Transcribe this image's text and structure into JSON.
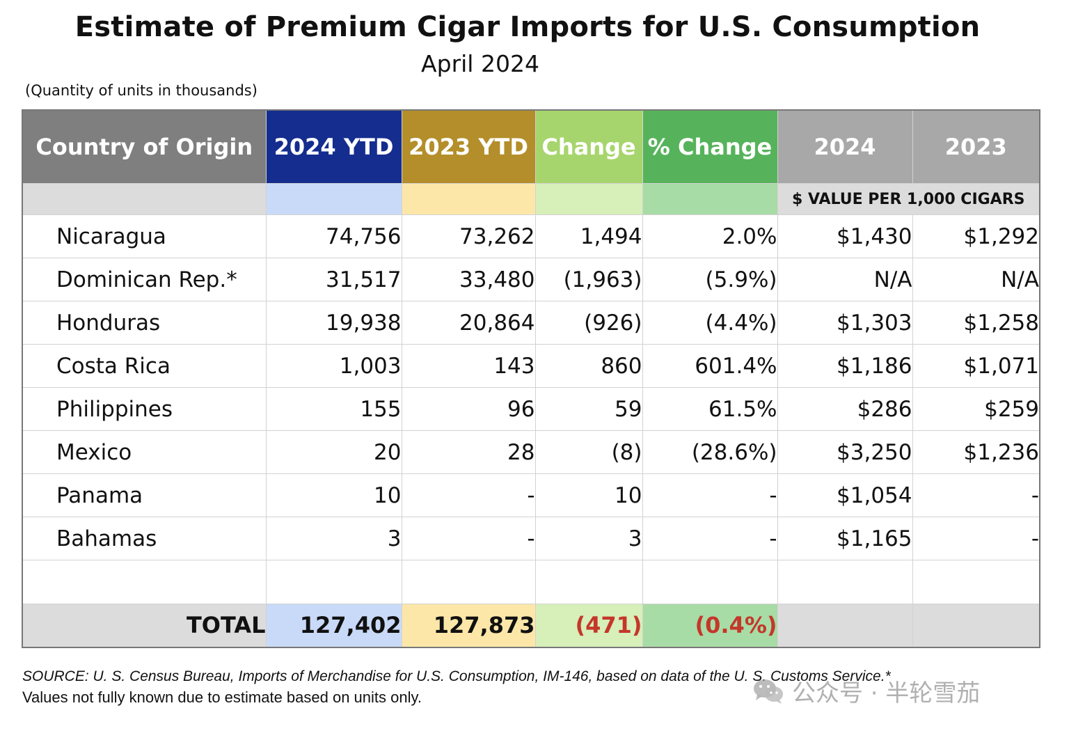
{
  "title": "Estimate of Premium Cigar Imports for U.S. Consumption",
  "subtitle": "April 2024",
  "units_note": "(Quantity of units in thousands)",
  "table": {
    "headers": {
      "country": "Country of Origin",
      "ytd_2024": "2024 YTD",
      "ytd_2023": "2023 YTD",
      "change": "Change",
      "pct_change": "% Change",
      "val_2024": "2024",
      "val_2023": "2023"
    },
    "value_subheader": "$ VALUE PER 1,000 CIGARS",
    "rows": [
      {
        "country": "Nicaragua",
        "ytd_2024": "74,756",
        "ytd_2023": "73,262",
        "change": "1,494",
        "pct_change": "2.0%",
        "val_2024": "$1,430",
        "val_2023": "$1,292"
      },
      {
        "country": "Dominican Rep.*",
        "ytd_2024": "31,517",
        "ytd_2023": "33,480",
        "change": "(1,963)",
        "pct_change": "(5.9%)",
        "val_2024": "N/A",
        "val_2023": "N/A"
      },
      {
        "country": "Honduras",
        "ytd_2024": "19,938",
        "ytd_2023": "20,864",
        "change": "(926)",
        "pct_change": "(4.4%)",
        "val_2024": "$1,303",
        "val_2023": "$1,258"
      },
      {
        "country": "Costa Rica",
        "ytd_2024": "1,003",
        "ytd_2023": "143",
        "change": "860",
        "pct_change": "601.4%",
        "val_2024": "$1,186",
        "val_2023": "$1,071"
      },
      {
        "country": "Philippines",
        "ytd_2024": "155",
        "ytd_2023": "96",
        "change": "59",
        "pct_change": "61.5%",
        "val_2024": "$286",
        "val_2023": "$259"
      },
      {
        "country": "Mexico",
        "ytd_2024": "20",
        "ytd_2023": "28",
        "change": "(8)",
        "pct_change": "(28.6%)",
        "val_2024": "$3,250",
        "val_2023": "$1,236"
      },
      {
        "country": "Panama",
        "ytd_2024": "10",
        "ytd_2023": "-",
        "change": "10",
        "pct_change": "-",
        "val_2024": "$1,054",
        "val_2023": "-"
      },
      {
        "country": "Bahamas",
        "ytd_2024": "3",
        "ytd_2023": "-",
        "change": "3",
        "pct_change": "-",
        "val_2024": "$1,165",
        "val_2023": "-"
      }
    ],
    "total": {
      "label": "TOTAL",
      "ytd_2024": "127,402",
      "ytd_2023": "127,873",
      "change": "(471)",
      "pct_change": "(0.4%)"
    }
  },
  "footer": {
    "source": "SOURCE: U. S. Census Bureau, Imports of Merchandise for U.S. Consumption, IM-146, based on data of the U. S. Customs Service.*",
    "note": "Values not fully known due to estimate based on units only."
  },
  "watermark": {
    "text": "公众号 · 半轮雪茄",
    "icon": "wechat-icon"
  },
  "colors": {
    "header_country": "#7f7f7f",
    "header_2024_ytd": "#142d8f",
    "header_2023_ytd": "#b38e2a",
    "header_change": "#a7d56d",
    "header_pct_change": "#56b35b",
    "header_values": "#a8a8a8",
    "negative_total": "#c4372a"
  }
}
